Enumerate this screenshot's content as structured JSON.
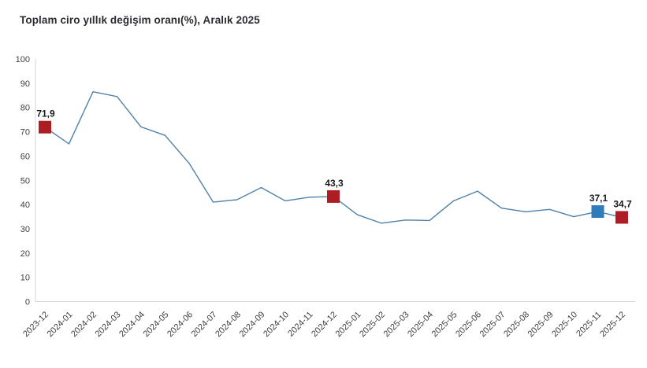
{
  "title": "Toplam ciro yıllık değişim oranı(%), Aralık 2025",
  "chart_data": {
    "type": "line",
    "title": "Toplam ciro yıllık değişim oranı(%), Aralık 2025",
    "xlabel": "",
    "ylabel": "",
    "ylim": [
      0,
      100
    ],
    "y_ticks": [
      0,
      10,
      20,
      30,
      40,
      50,
      60,
      70,
      80,
      90,
      100
    ],
    "grid": false,
    "legend": "none",
    "categories": [
      "2023-12",
      "2024-01",
      "2024-02",
      "2024-03",
      "2024-04",
      "2024-05",
      "2024-06",
      "2024-07",
      "2024-08",
      "2024-09",
      "2024-10",
      "2024-11",
      "2024-12",
      "2025-01",
      "2025-02",
      "2025-03",
      "2025-04",
      "2025-05",
      "2025-06",
      "2025-07",
      "2025-08",
      "2025-09",
      "2025-10",
      "2025-11",
      "2025-12"
    ],
    "values": [
      71.9,
      65.0,
      86.5,
      84.5,
      72.0,
      68.5,
      57.0,
      41.0,
      42.0,
      47.0,
      41.5,
      43.0,
      43.3,
      35.8,
      32.3,
      33.6,
      33.4,
      41.5,
      45.5,
      38.5,
      37.0,
      38.0,
      35.0,
      37.1,
      34.7
    ],
    "annotated_points": [
      {
        "category": "2023-12",
        "index": 0,
        "label": "71,9",
        "value": 71.9,
        "marker_color": "#ae1c24"
      },
      {
        "category": "2024-12",
        "index": 12,
        "label": "43,3",
        "value": 43.3,
        "marker_color": "#ae1c24"
      },
      {
        "category": "2025-11",
        "index": 23,
        "label": "37,1",
        "value": 37.1,
        "marker_color": "#2e7bbd"
      },
      {
        "category": "2025-12",
        "index": 24,
        "label": "34,7",
        "value": 34.7,
        "marker_color": "#ae1c24"
      }
    ],
    "line_color": "#4e81ab",
    "axis_color": "#d6d6d6",
    "tick_text_color": "#3f3f3f",
    "annotation_text_color": "#1a1a1a",
    "background_color": "#ffffff"
  }
}
